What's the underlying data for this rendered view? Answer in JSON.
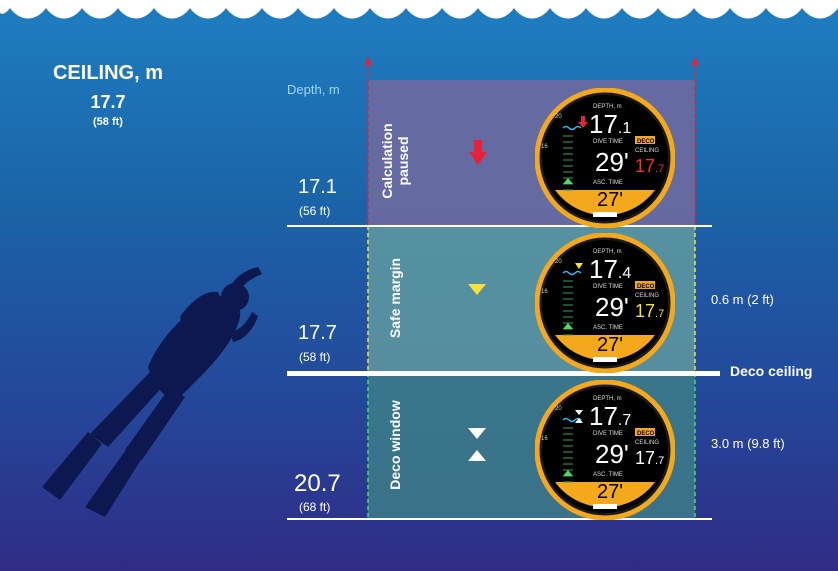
{
  "ceiling": {
    "title": "CEILING, m",
    "value_m": "17.7",
    "value_ft": "(58 ft)"
  },
  "depth_axis_label": "Depth, m",
  "depths": [
    {
      "m": "17.1",
      "ft": "(56 ft)"
    },
    {
      "m": "17.7",
      "ft": "(58 ft)"
    },
    {
      "m": "20.7",
      "ft": "(68 ft)"
    }
  ],
  "deco_ceiling_label": "Deco ceiling",
  "zones": [
    {
      "label_line1": "Calculation",
      "label_line2": "paused",
      "color": "#6e6aa0",
      "indicator": "red-down-arrow-icon",
      "note": ""
    },
    {
      "label_line1": "Safe margin",
      "label_line2": "",
      "color": "#5f9aa0",
      "indicator": "yellow-down-triangle-icon",
      "note": "0.6 m (2 ft)"
    },
    {
      "label_line1": "Deco window",
      "label_line2": "",
      "color": "#3d7e88",
      "indicator": "white-triangles-icon",
      "note": "3.0 m (9.8 ft)"
    }
  ],
  "watches": [
    {
      "depth_label": "DEPTH, m",
      "depth_int": "17",
      "depth_dec": ".1",
      "dive_time_label": "DIVE TIME",
      "dive_time": "29'",
      "deco_badge": "DECO",
      "ceiling_label": "CEILING",
      "ceiling_int": "17",
      "ceiling_dec": ".7",
      "ceiling_color": "#ff2a2a",
      "asc_label": "ASC. TIME",
      "asc_time": "27'"
    },
    {
      "depth_label": "DEPTH, m",
      "depth_int": "17",
      "depth_dec": ".4",
      "dive_time_label": "DIVE TIME",
      "dive_time": "29'",
      "deco_badge": "DECO",
      "ceiling_label": "CEILING",
      "ceiling_int": "17",
      "ceiling_dec": ".7",
      "ceiling_color": "#f5e23a",
      "asc_label": "ASC. TIME",
      "asc_time": "27'"
    },
    {
      "depth_label": "DEPTH, m",
      "depth_int": "17",
      "depth_dec": ".7",
      "dive_time_label": "DIVE TIME",
      "dive_time": "29'",
      "deco_badge": "DECO",
      "ceiling_label": "CEILING",
      "ceiling_int": "17",
      "ceiling_dec": ".7",
      "ceiling_color": "#ffffff",
      "asc_label": "ASC. TIME",
      "asc_time": "27'"
    }
  ],
  "bezel_marks": [
    "10",
    "16",
    "20"
  ],
  "colors": {
    "accent": "#f4a81b",
    "danger": "#e8213a",
    "warning": "#f5e23a",
    "safe": "#4cd964"
  }
}
